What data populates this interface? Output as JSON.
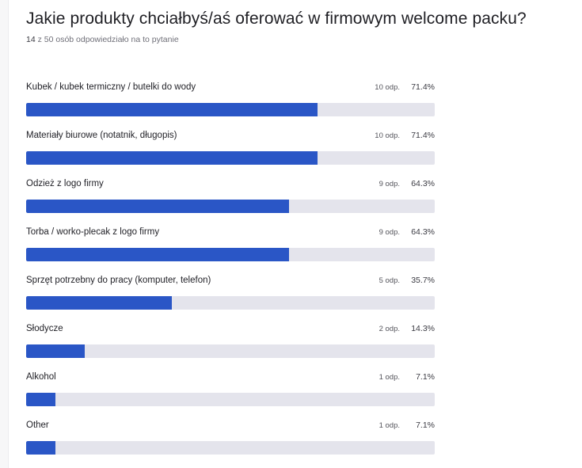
{
  "question": {
    "title": "Jakie produkty chciałbyś/aś oferować w firmowym welcome packu?",
    "responses_count": "14",
    "responses_rest": "z 50 osób odpowiedziało na to pytanie"
  },
  "colors": {
    "bar_fill": "#2a56c6",
    "bar_track": "#e4e4ec"
  },
  "chart_data": {
    "type": "bar",
    "orientation": "horizontal",
    "title": "Jakie produkty chciałbyś/aś oferować w firmowym welcome packu?",
    "xlim": [
      0,
      100
    ],
    "categories": [
      "Kubek / kubek termiczny / butelki do wody",
      "Materiały biurowe (notatnik, długopis)",
      "Odzież z logo firmy",
      "Torba / worko-plecak z logo firmy",
      "Sprzęt potrzebny do pracy (komputer, telefon)",
      "Słodycze",
      "Alkohol",
      "Other"
    ],
    "values": [
      71.4,
      71.4,
      64.3,
      64.3,
      35.7,
      14.3,
      7.1,
      7.1
    ],
    "counts": [
      10,
      10,
      9,
      9,
      5,
      2,
      1,
      1
    ],
    "count_labels": [
      "10 odp.",
      "10 odp.",
      "9 odp.",
      "9 odp.",
      "5 odp.",
      "2 odp.",
      "1 odp.",
      "1 odp."
    ],
    "value_labels": [
      "71.4%",
      "71.4%",
      "64.3%",
      "64.3%",
      "35.7%",
      "14.3%",
      "7.1%",
      "7.1%"
    ]
  }
}
